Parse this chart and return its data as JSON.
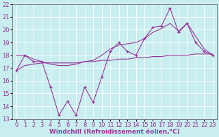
{
  "xlabel": "Windchill (Refroidissement éolien,°C)",
  "x_values": [
    0,
    1,
    2,
    3,
    4,
    5,
    6,
    7,
    8,
    9,
    10,
    11,
    12,
    13,
    14,
    15,
    16,
    17,
    18,
    19,
    20,
    21,
    22,
    23
  ],
  "y_main": [
    16.8,
    18.0,
    17.5,
    17.5,
    15.5,
    13.3,
    14.4,
    13.3,
    15.5,
    14.3,
    16.3,
    18.3,
    19.0,
    18.3,
    18.0,
    19.3,
    20.2,
    20.3,
    21.7,
    19.8,
    20.5,
    19.0,
    18.3,
    18.0
  ],
  "y_upper": [
    18.0,
    18.0,
    17.7,
    17.5,
    17.3,
    17.2,
    17.2,
    17.3,
    17.5,
    17.6,
    18.0,
    18.5,
    18.8,
    18.9,
    19.0,
    19.3,
    19.8,
    20.1,
    20.5,
    19.9,
    20.5,
    19.5,
    18.5,
    18.0
  ],
  "y_lower": [
    16.8,
    17.2,
    17.3,
    17.4,
    17.4,
    17.4,
    17.4,
    17.4,
    17.5,
    17.5,
    17.6,
    17.6,
    17.7,
    17.7,
    17.8,
    17.8,
    17.9,
    17.9,
    18.0,
    18.0,
    18.0,
    18.1,
    18.1,
    18.1
  ],
  "line_color": "#993399",
  "bg_color": "#c8eef0",
  "grid_color": "#ffffff",
  "ylim": [
    13,
    22
  ],
  "xlim": [
    -0.5,
    23.5
  ],
  "yticks": [
    13,
    14,
    15,
    16,
    17,
    18,
    19,
    20,
    21,
    22
  ],
  "xticks": [
    0,
    1,
    2,
    3,
    4,
    5,
    6,
    7,
    8,
    9,
    10,
    11,
    12,
    13,
    14,
    15,
    16,
    17,
    18,
    19,
    20,
    21,
    22,
    23
  ],
  "xlabel_fontsize": 6.5,
  "tick_fontsize": 6.0
}
